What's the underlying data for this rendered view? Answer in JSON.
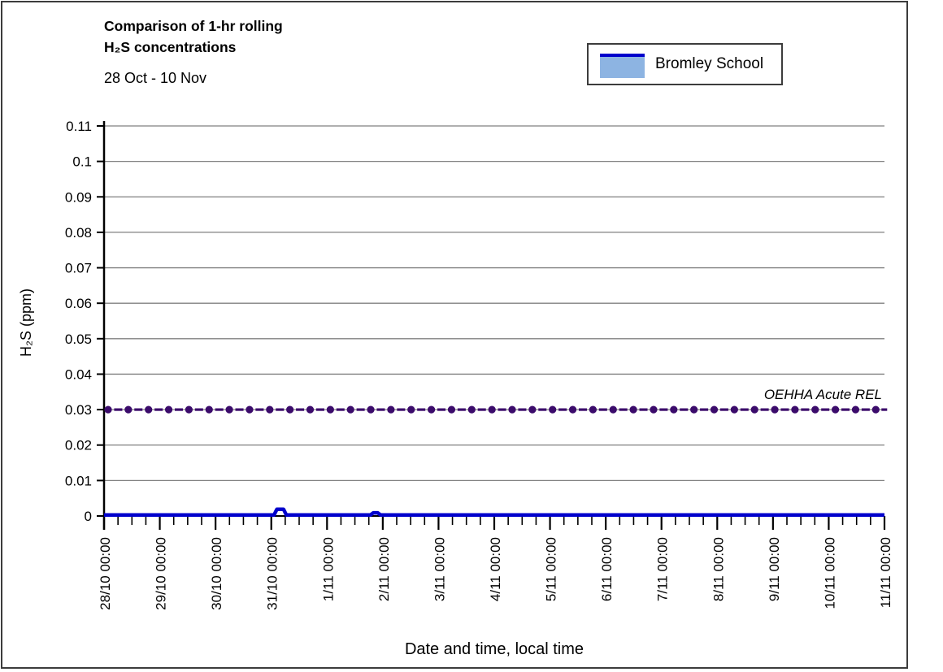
{
  "header": {
    "title_line1": "Comparison of 1-hr rolling",
    "title_line2": "H₂S concentrations",
    "date_range": "28 Oct - 10 Nov"
  },
  "legend": {
    "label": "Bromley School",
    "line_color": "#0000CC",
    "fill_color": "#8DB4E2"
  },
  "chart_data": {
    "type": "area",
    "title": "Comparison of 1-hr rolling H₂S concentrations",
    "subtitle_date_range": "28 Oct - 10 Nov",
    "xlabel": "Date and time, local time",
    "ylabel": "H₂S (ppm)",
    "ylim": [
      0,
      0.11
    ],
    "ytick_step": 0.01,
    "y_tick_labels": [
      "0",
      "0.01",
      "0.02",
      "0.03",
      "0.04",
      "0.05",
      "0.06",
      "0.07",
      "0.08",
      "0.09",
      "0.1",
      "0.11"
    ],
    "x_tick_labels": [
      "28/10 00:00",
      "29/10 00:00",
      "30/10 00:00",
      "31/10 00:00",
      "1/11 00:00",
      "2/11 00:00",
      "3/11 00:00",
      "4/11 00:00",
      "5/11 00:00",
      "6/11 00:00",
      "7/11 00:00",
      "8/11 00:00",
      "9/11 00:00",
      "10/11 00:00",
      "11/11 00:00"
    ],
    "x_range_days": [
      0,
      14
    ],
    "x_minor_step_days": 0.25,
    "grid": "horizontal-only",
    "legend_position": "top-right",
    "series": [
      {
        "name": "Bromley School",
        "color": "#0000CC",
        "fill": "#8DB4E2",
        "unit": "ppm",
        "points": [
          [
            0,
            0.0003
          ],
          [
            3.05,
            0.0003
          ],
          [
            3.1,
            0.0019
          ],
          [
            3.22,
            0.0019
          ],
          [
            3.27,
            0.0003
          ],
          [
            4.78,
            0.0003
          ],
          [
            4.83,
            0.0009
          ],
          [
            4.91,
            0.0009
          ],
          [
            4.96,
            0.0003
          ],
          [
            14,
            0.0003
          ]
        ]
      }
    ],
    "reference_line": {
      "label": "OEHHA Acute REL",
      "value": 0.03,
      "color": "#3B0B6B",
      "style": "dash-dot"
    },
    "colors": {
      "grid": "#808080",
      "axis": "#000000"
    }
  }
}
